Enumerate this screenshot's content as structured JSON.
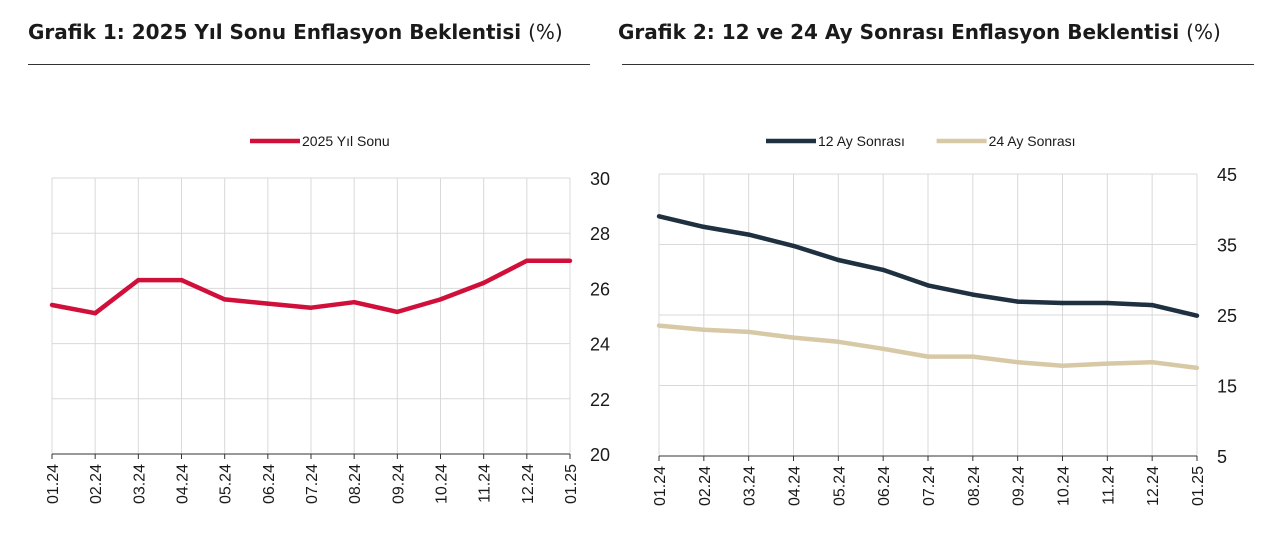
{
  "charts": [
    {
      "title": "Grafik 1: 2025 Yıl Sonu Enflasyon Beklentisi",
      "unit": "(%)"
    },
    {
      "title": "Grafik 2: 12 ve 24 Ay Sonrası Enflasyon Beklentisi",
      "unit": "(%)"
    }
  ],
  "chart_data": [
    {
      "type": "line",
      "categories": [
        "01.24",
        "02.24",
        "03.24",
        "04.24",
        "05.24",
        "06.24",
        "07.24",
        "08.24",
        "09.24",
        "10.24",
        "11.24",
        "12.24",
        "01.25"
      ],
      "series": [
        {
          "name": "2025 Yıl Sonu",
          "color": "#d0103a",
          "values": [
            25.4,
            25.1,
            26.3,
            26.3,
            25.6,
            25.45,
            25.3,
            25.5,
            25.15,
            25.6,
            26.2,
            27.0,
            27.0
          ]
        }
      ],
      "ylim": [
        20,
        30
      ],
      "yticks": [
        "20",
        "22",
        "24",
        "26",
        "28",
        "30"
      ],
      "y_axis_side": "right",
      "grid": true,
      "legend": "top-center"
    },
    {
      "type": "line",
      "categories": [
        "01.24",
        "02.24",
        "03.24",
        "04.24",
        "05.24",
        "06.24",
        "07.24",
        "08.24",
        "09.24",
        "10.24",
        "11.24",
        "12.24",
        "01.25"
      ],
      "series": [
        {
          "name": "12 Ay Sonrası",
          "color": "#1f3040",
          "values": [
            39.0,
            37.5,
            36.4,
            34.8,
            32.8,
            31.4,
            29.2,
            27.9,
            26.9,
            26.7,
            26.7,
            26.4,
            24.9
          ]
        },
        {
          "name": "24 Ay Sonrası",
          "color": "#d8c9a6",
          "values": [
            23.5,
            22.9,
            22.6,
            21.8,
            21.2,
            20.2,
            19.1,
            19.1,
            18.3,
            17.8,
            18.1,
            18.3,
            17.5
          ]
        }
      ],
      "ylim": [
        5,
        45
      ],
      "yticks": [
        "5",
        "15",
        "25",
        "35",
        "45"
      ],
      "y_axis_side": "right",
      "grid": true,
      "legend": "top-center"
    }
  ]
}
